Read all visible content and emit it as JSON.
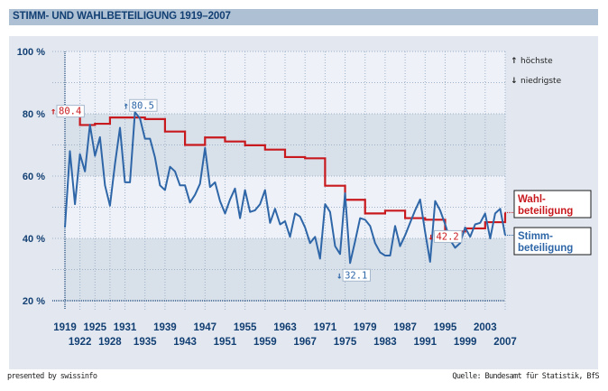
{
  "header": {
    "title": "STIMM- UND WAHLBETEILIGUNG 1919–2007"
  },
  "footer": {
    "left": "presented by swissinfo",
    "right": "Quelle: Bundesamt für Statistik, BfS"
  },
  "colors": {
    "title_bar": "#aec0d3",
    "title_text": "#123f73",
    "panel": "#e3e8f0",
    "band_light": "#eef2f8",
    "band_dark": "#d8e0ea",
    "wahl": "#c8191e",
    "stimm": "#2e66a8",
    "axis_text": "#123f73"
  },
  "chart_data": {
    "type": "line",
    "title": "STIMM- UND WAHLBETEILIGUNG 1919–2007",
    "xlabel": "",
    "ylabel": "",
    "xlim": [
      1919,
      2007
    ],
    "ylim": [
      20,
      100
    ],
    "y_ticks": [
      20,
      40,
      60,
      80,
      100
    ],
    "y_tick_labels": [
      "20 %",
      "40 %",
      "60 %",
      "80 %",
      "100 %"
    ],
    "x_tick_labels_top": [
      "1919",
      "1925",
      "1931",
      "1939",
      "1947",
      "1955",
      "1963",
      "1971",
      "1979",
      "1987",
      "1995",
      "2003"
    ],
    "x_tick_labels_bottom": [
      "1922",
      "1928",
      "1935",
      "1943",
      "1951",
      "1959",
      "1967",
      "1975",
      "1983",
      "1991",
      "1999",
      "2007"
    ],
    "grid": true,
    "legend_notes": {
      "highest": "höchste",
      "lowest": "niedrigste",
      "highest_symbol": "↑",
      "lowest_symbol": "↓"
    },
    "series": [
      {
        "name": "Wahlbeteiligung",
        "label_lines": [
          "Wahl-",
          "beteiligung"
        ],
        "style": "step",
        "x": [
          1919,
          1922,
          1925,
          1928,
          1931,
          1935,
          1939,
          1943,
          1947,
          1951,
          1955,
          1959,
          1963,
          1967,
          1971,
          1975,
          1979,
          1983,
          1987,
          1991,
          1995,
          1999,
          2003,
          2007
        ],
        "values": [
          80.4,
          76.4,
          76.8,
          78.8,
          78.8,
          78.3,
          74.3,
          70.0,
          72.4,
          71.1,
          69.9,
          68.5,
          66.1,
          65.7,
          56.9,
          52.4,
          48.0,
          48.9,
          46.5,
          46.0,
          42.2,
          43.2,
          45.2,
          48.3
        ],
        "annotations": [
          {
            "type": "highest",
            "x": 1919,
            "value": 80.4,
            "label": "80.4"
          },
          {
            "type": "lowest",
            "x": 1995,
            "value": 42.2,
            "label": "42.2"
          }
        ]
      },
      {
        "name": "Stimmbeteiligung",
        "label_lines": [
          "Stimm-",
          "beteiligung"
        ],
        "style": "line",
        "x": [
          1919,
          1920,
          1921,
          1922,
          1923,
          1924,
          1925,
          1926,
          1927,
          1928,
          1929,
          1930,
          1931,
          1932,
          1933,
          1934,
          1935,
          1936,
          1937,
          1938,
          1939,
          1940,
          1941,
          1942,
          1943,
          1944,
          1945,
          1946,
          1947,
          1948,
          1949,
          1950,
          1951,
          1952,
          1953,
          1954,
          1955,
          1956,
          1957,
          1958,
          1959,
          1960,
          1961,
          1962,
          1963,
          1964,
          1965,
          1966,
          1967,
          1968,
          1969,
          1970,
          1971,
          1972,
          1973,
          1974,
          1975,
          1976,
          1977,
          1978,
          1979,
          1980,
          1981,
          1982,
          1983,
          1984,
          1985,
          1986,
          1987,
          1988,
          1989,
          1990,
          1991,
          1992,
          1993,
          1994,
          1995,
          1996,
          1997,
          1998,
          1999,
          2000,
          2001,
          2002,
          2003,
          2004,
          2005,
          2006,
          2007
        ],
        "values": [
          43.5,
          68.0,
          51.0,
          67.0,
          61.5,
          76.5,
          66.5,
          72.5,
          57.0,
          50.5,
          64.0,
          75.5,
          58.0,
          58.0,
          80.5,
          78.5,
          72.0,
          72.0,
          66.0,
          57.0,
          55.5,
          63.0,
          61.5,
          57.0,
          57.0,
          51.5,
          54.0,
          57.5,
          69.0,
          56.5,
          58.0,
          52.0,
          48.0,
          52.5,
          56.0,
          46.5,
          55.5,
          48.5,
          49.0,
          51.0,
          55.5,
          45.0,
          49.5,
          44.5,
          45.5,
          40.5,
          48.0,
          47.0,
          43.5,
          38.5,
          40.5,
          33.5,
          51.0,
          48.5,
          37.5,
          35.0,
          54.5,
          32.1,
          39.0,
          46.5,
          46.0,
          44.0,
          38.5,
          35.5,
          34.5,
          34.5,
          44.0,
          37.5,
          41.0,
          45.0,
          49.0,
          52.5,
          42.0,
          32.5,
          52.0,
          49.0,
          44.5,
          39.5,
          37.0,
          38.5,
          43.5,
          40.5,
          44.5,
          45.0,
          48.0,
          40.0,
          48.0,
          49.5,
          41.0
        ],
        "annotations": [
          {
            "type": "highest",
            "x": 1933,
            "value": 80.5,
            "label": "80.5"
          },
          {
            "type": "lowest",
            "x": 1976,
            "value": 32.1,
            "label": "32.1"
          }
        ]
      }
    ]
  }
}
